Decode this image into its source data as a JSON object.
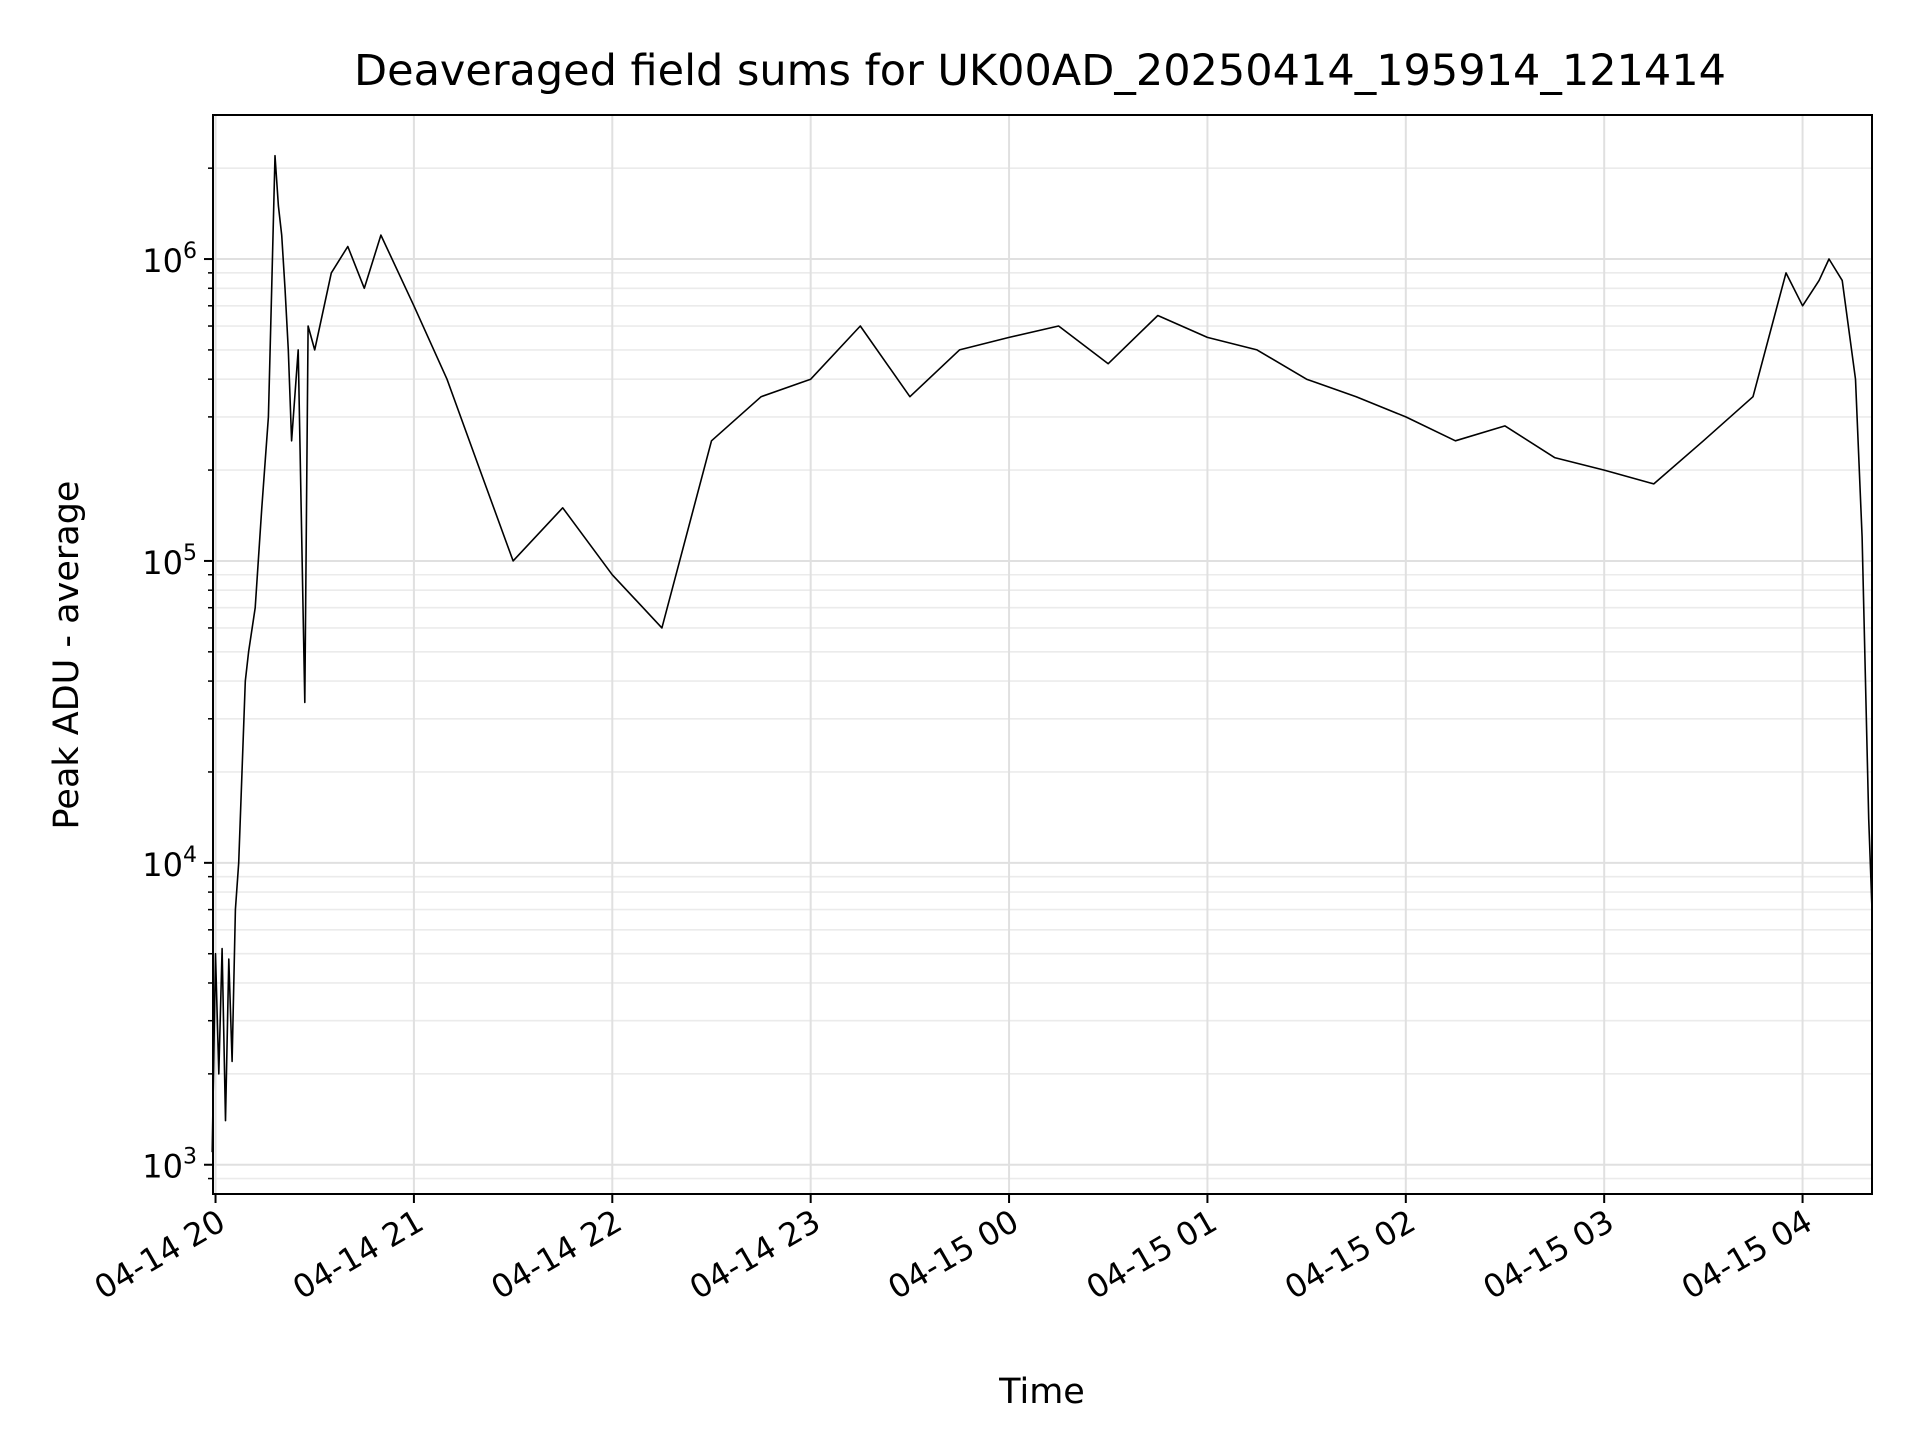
{
  "chart_data": {
    "type": "line",
    "title": "Deaveraged field sums for UK00AD_20250414_195914_121414",
    "xlabel": "Time",
    "ylabel": "Peak ADU - average",
    "yscale": "log",
    "ylim": [
      800,
      3000000
    ],
    "xlim": [
      "2025-04-14 19:59:14",
      "2025-04-15 04:21:00"
    ],
    "x_ticks": [
      {
        "t": "2025-04-14 20:00",
        "label": "04-14 20"
      },
      {
        "t": "2025-04-14 21:00",
        "label": "04-14 21"
      },
      {
        "t": "2025-04-14 22:00",
        "label": "04-14 22"
      },
      {
        "t": "2025-04-14 23:00",
        "label": "04-14 23"
      },
      {
        "t": "2025-04-15 00:00",
        "label": "04-15 00"
      },
      {
        "t": "2025-04-15 01:00",
        "label": "04-15 01"
      },
      {
        "t": "2025-04-15 02:00",
        "label": "04-15 02"
      },
      {
        "t": "2025-04-15 03:00",
        "label": "04-15 03"
      },
      {
        "t": "2025-04-15 04:00",
        "label": "04-15 04"
      }
    ],
    "y_ticks": [
      {
        "value": 1000,
        "base": "10",
        "exp": "3"
      },
      {
        "value": 10000,
        "base": "10",
        "exp": "4"
      },
      {
        "value": 100000,
        "base": "10",
        "exp": "5"
      },
      {
        "value": 1000000,
        "base": "10",
        "exp": "6"
      }
    ],
    "grid": true,
    "series_color": "#000000",
    "series": [
      {
        "x": [
          "2025-04-14 19:59",
          "2025-04-14 20:00",
          "2025-04-14 20:01",
          "2025-04-14 20:02",
          "2025-04-14 20:03",
          "2025-04-14 20:04",
          "2025-04-14 20:05",
          "2025-04-14 20:06",
          "2025-04-14 20:07",
          "2025-04-14 20:08",
          "2025-04-14 20:09",
          "2025-04-14 20:10",
          "2025-04-14 20:12",
          "2025-04-14 20:14",
          "2025-04-14 20:16",
          "2025-04-14 20:17",
          "2025-04-14 20:18",
          "2025-04-14 20:19",
          "2025-04-14 20:20",
          "2025-04-14 20:21",
          "2025-04-14 20:22",
          "2025-04-14 20:23",
          "2025-04-14 20:25",
          "2025-04-14 20:27",
          "2025-04-14 20:28",
          "2025-04-14 20:30",
          "2025-04-14 20:35",
          "2025-04-14 20:40",
          "2025-04-14 20:45",
          "2025-04-14 20:50",
          "2025-04-14 21:00",
          "2025-04-14 21:10",
          "2025-04-14 21:20",
          "2025-04-14 21:30",
          "2025-04-14 21:45",
          "2025-04-14 22:00",
          "2025-04-14 22:15",
          "2025-04-14 22:30",
          "2025-04-14 22:45",
          "2025-04-14 23:00",
          "2025-04-14 23:15",
          "2025-04-14 23:30",
          "2025-04-14 23:45",
          "2025-04-15 00:00",
          "2025-04-15 00:15",
          "2025-04-15 00:30",
          "2025-04-15 00:45",
          "2025-04-15 01:00",
          "2025-04-15 01:15",
          "2025-04-15 01:30",
          "2025-04-15 01:45",
          "2025-04-15 02:00",
          "2025-04-15 02:15",
          "2025-04-15 02:30",
          "2025-04-15 02:45",
          "2025-04-15 03:00",
          "2025-04-15 03:15",
          "2025-04-15 03:30",
          "2025-04-15 03:45",
          "2025-04-15 03:55",
          "2025-04-15 04:00",
          "2025-04-15 04:05",
          "2025-04-15 04:08",
          "2025-04-15 04:12",
          "2025-04-15 04:16",
          "2025-04-15 04:18",
          "2025-04-15 04:20",
          "2025-04-15 04:21"
        ],
        "y": [
          1100,
          5000,
          2000,
          5200,
          1400,
          4800,
          2200,
          7000,
          10000,
          20000,
          40000,
          50000,
          70000,
          150000,
          300000,
          800000,
          2200000,
          1500000,
          1200000,
          800000,
          500000,
          250000,
          500000,
          34000,
          600000,
          500000,
          900000,
          1100000,
          800000,
          1200000,
          700000,
          400000,
          200000,
          100000,
          150000,
          90000,
          60000,
          250000,
          350000,
          400000,
          600000,
          350000,
          500000,
          550000,
          600000,
          450000,
          650000,
          550000,
          500000,
          400000,
          350000,
          300000,
          250000,
          280000,
          220000,
          200000,
          180000,
          250000,
          350000,
          900000,
          700000,
          850000,
          1000000,
          850000,
          400000,
          120000,
          14000,
          7000
        ]
      }
    ]
  }
}
